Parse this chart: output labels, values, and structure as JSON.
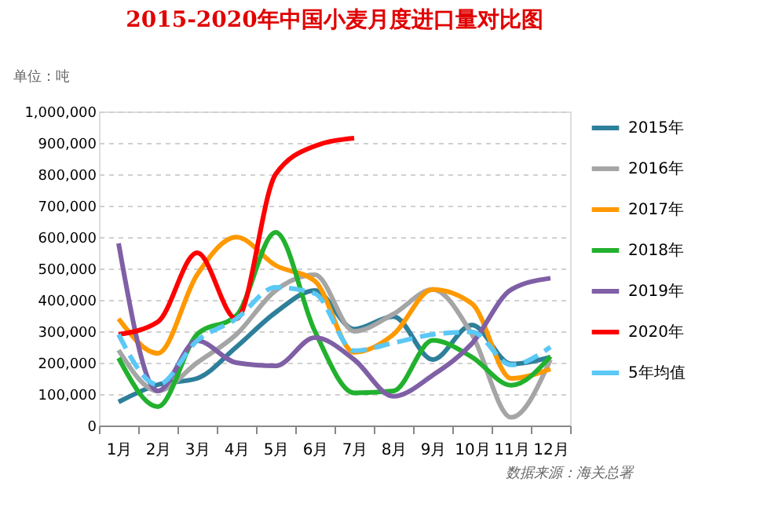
{
  "chart_data": {
    "type": "line",
    "title": "2015-2020年中国小麦月度进口量对比图",
    "ylabel": "单位：吨",
    "categories": [
      "1月",
      "2月",
      "3月",
      "4月",
      "5月",
      "6月",
      "7月",
      "8月",
      "9月",
      "10月",
      "11月",
      "12月"
    ],
    "series": [
      {
        "name": "2015年",
        "color": "#2e7f9a",
        "values": [
          75000,
          130000,
          150000,
          250000,
          360000,
          430000,
          307000,
          347000,
          210000,
          320000,
          196000,
          218000
        ]
      },
      {
        "name": "2016年",
        "color": "#a5a5a5",
        "values": [
          240000,
          110000,
          200000,
          290000,
          430000,
          480000,
          300000,
          355000,
          433000,
          290000,
          26000,
          210000
        ]
      },
      {
        "name": "2017年",
        "color": "#ff9900",
        "values": [
          340000,
          230000,
          480000,
          600000,
          510000,
          460000,
          233000,
          290000,
          433000,
          388000,
          150000,
          180000
        ]
      },
      {
        "name": "2018年",
        "color": "#22b12e",
        "values": [
          215000,
          60000,
          290000,
          350000,
          615000,
          300000,
          104000,
          110000,
          271000,
          218000,
          128000,
          220000
        ]
      },
      {
        "name": "2019年",
        "color": "#7f5fa5",
        "values": [
          580000,
          110000,
          270000,
          200000,
          190000,
          280000,
          210000,
          93000,
          160000,
          261000,
          433000,
          469000
        ]
      },
      {
        "name": "2020年",
        "color": "#ff0000",
        "values": [
          290000,
          330000,
          550000,
          340000,
          800000,
          890000,
          915000,
          null,
          null,
          null,
          null,
          null
        ]
      },
      {
        "name": "5年均值",
        "color": "#5bc8f5",
        "line_style": "dashed",
        "values": [
          290000,
          130000,
          270000,
          340000,
          440000,
          420000,
          238000,
          263000,
          290000,
          298000,
          193000,
          250000
        ]
      }
    ],
    "ylim": [
      0,
      1000000
    ],
    "yticks": [
      0,
      {
        "value": 100000,
        "label": "100,000"
      },
      {
        "value": 200000,
        "label": "200,000"
      },
      {
        "value": 300000,
        "label": "300,000"
      },
      {
        "value": 400000,
        "label": "400,000"
      },
      {
        "value": 500000,
        "label": "500,000"
      },
      {
        "value": 600000,
        "label": "600,000"
      },
      {
        "value": 700000,
        "label": "700,000"
      },
      {
        "value": 800000,
        "label": "800,000"
      },
      {
        "value": 900000,
        "label": "900,000"
      },
      {
        "value": 1000000,
        "label": "1,000,000"
      }
    ],
    "grid": "y",
    "legend": "right",
    "line_style": "solid",
    "annotations": [
      "数据来源：海关总署"
    ]
  }
}
